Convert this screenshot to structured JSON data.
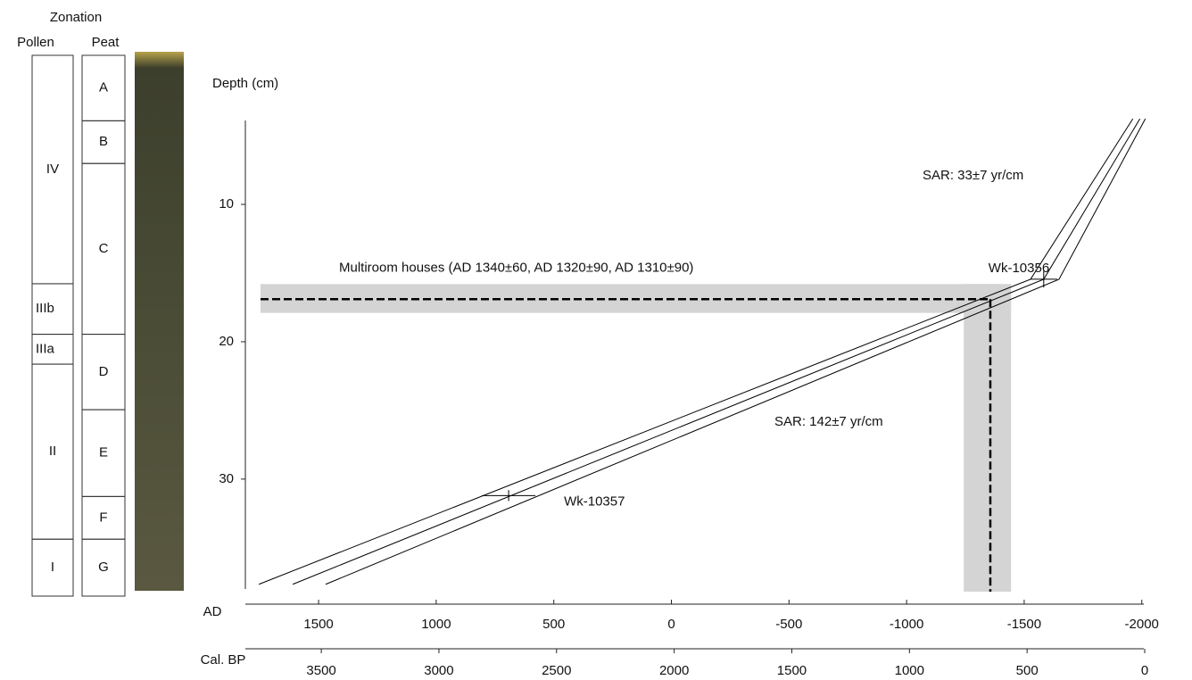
{
  "chart_data": {
    "type": "age-depth",
    "y_label": "Depth (cm)",
    "ylim": [
      3.5,
      38
    ],
    "yticks": [
      10,
      20,
      30
    ],
    "x_label": "AD",
    "xlim": [
      1800,
      -2020
    ],
    "xticks": [
      1500,
      1000,
      500,
      0,
      -500,
      -1000,
      -1500,
      -2000
    ],
    "x2_label": "Cal. BP",
    "x2lim": [
      3800,
      0
    ],
    "x2ticks": [
      3500,
      3000,
      2500,
      2000,
      1500,
      1000,
      500,
      0
    ],
    "series": [
      {
        "color": "#000000",
        "x": [
          1754,
          -1527,
          -1962
        ],
        "y": [
          37.66,
          15.45,
          3.77
        ]
      },
      {
        "color": "#000000",
        "x": [
          1610,
          -1583,
          -1992
        ],
        "y": [
          37.66,
          15.45,
          3.77
        ]
      },
      {
        "color": "#000000",
        "x": [
          1470,
          -1648,
          -2015
        ],
        "y": [
          37.66,
          15.45,
          3.77
        ]
      }
    ],
    "dates": [
      {
        "label": "Wk-10356",
        "x": -1583,
        "y": 15.45,
        "x_err": 57,
        "y_err": 0.6
      },
      {
        "label": "Wk-10357",
        "x": 692,
        "y": 31.2,
        "x_err": 114,
        "y_err": 0.4
      }
    ],
    "annotations": [
      "SAR: 33±7 yr/cm",
      "SAR: 142±7 yr/cm"
    ],
    "event": {
      "label": "Multiroom houses (AD 1340±60, AD 1320±90, AD 1310±90)",
      "depth": 16.9,
      "depth_range": [
        15.8,
        17.9
      ],
      "age": -1356,
      "age_range": [
        -1243,
        -1444
      ]
    },
    "zonation": {
      "title": "Zonation",
      "pollen": {
        "name": "Pollen",
        "labels": [
          "IV",
          "IIIb",
          "IIIa",
          "II",
          "I"
        ],
        "bounds": [
          0,
          16.05,
          19.6,
          21.7,
          34.0,
          38
        ]
      },
      "peat": {
        "name": "Peat",
        "labels": [
          "A",
          "B",
          "C",
          "D",
          "E",
          "F",
          "G"
        ],
        "bounds": [
          0,
          4.6,
          7.6,
          19.6,
          24.9,
          31.0,
          34.0,
          38
        ]
      }
    }
  }
}
